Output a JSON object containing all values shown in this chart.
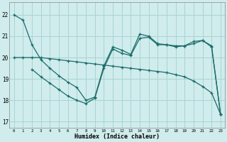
{
  "xlabel": "Humidex (Indice chaleur)",
  "xlim": [
    -0.5,
    23.5
  ],
  "ylim": [
    16.7,
    22.6
  ],
  "yticks": [
    17,
    18,
    19,
    20,
    21,
    22
  ],
  "xticks": [
    0,
    1,
    2,
    3,
    4,
    5,
    6,
    7,
    8,
    9,
    10,
    11,
    12,
    13,
    14,
    15,
    16,
    17,
    18,
    19,
    20,
    21,
    22,
    23
  ],
  "bg_color": "#d0ecec",
  "grid_color": "#a8d4d4",
  "line_color": "#1a6b6b",
  "line1_x": [
    0,
    1,
    2,
    3,
    4,
    5,
    6,
    7,
    8,
    9,
    10,
    11,
    12,
    13,
    14,
    15,
    16,
    17,
    18,
    19,
    20,
    21,
    22,
    23
  ],
  "line1_y": [
    22.0,
    21.75,
    20.6,
    19.9,
    19.5,
    19.15,
    18.85,
    18.6,
    18.0,
    18.15,
    19.6,
    20.5,
    20.35,
    20.15,
    21.1,
    21.0,
    20.65,
    20.6,
    20.55,
    20.55,
    20.75,
    20.8,
    20.55,
    17.35
  ],
  "line2_x": [
    2,
    3,
    4,
    5,
    6,
    7,
    8,
    9,
    10,
    11,
    12,
    13,
    14,
    15,
    16,
    17,
    18,
    19,
    20,
    21,
    22,
    23
  ],
  "line2_y": [
    19.45,
    19.1,
    18.8,
    18.5,
    18.2,
    18.0,
    17.85,
    18.1,
    19.5,
    20.4,
    20.2,
    20.1,
    20.9,
    20.95,
    20.6,
    20.6,
    20.5,
    20.55,
    20.65,
    20.8,
    20.5,
    17.35
  ],
  "line3_x": [
    0,
    1,
    2,
    3,
    4,
    5,
    6,
    7,
    8,
    9,
    10,
    11,
    12,
    13,
    14,
    15,
    16,
    17,
    18,
    19,
    20,
    21,
    22,
    23
  ],
  "line3_y": [
    20.0,
    20.0,
    20.0,
    20.0,
    19.95,
    19.9,
    19.85,
    19.8,
    19.75,
    19.7,
    19.65,
    19.6,
    19.55,
    19.5,
    19.45,
    19.4,
    19.35,
    19.3,
    19.2,
    19.1,
    18.9,
    18.65,
    18.35,
    17.35
  ]
}
